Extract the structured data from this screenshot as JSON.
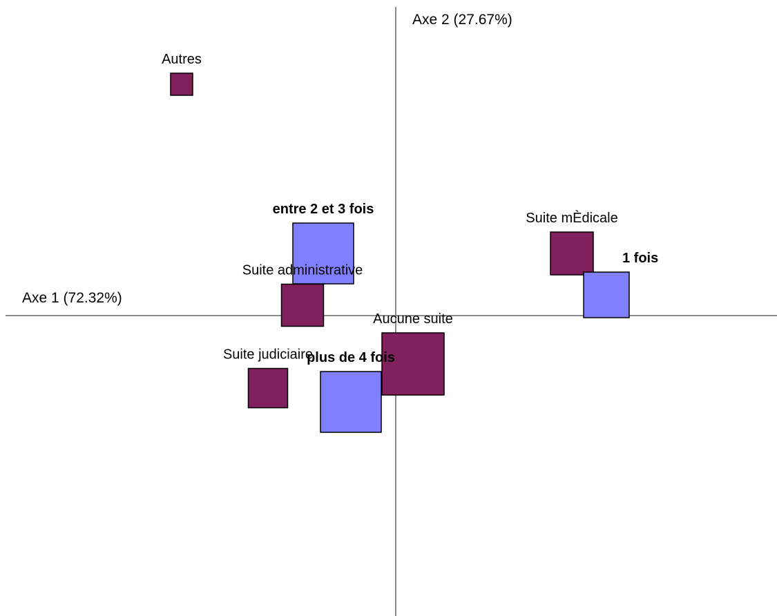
{
  "chart_data": {
    "type": "scatter",
    "title": "",
    "xlabel": "Axe 1 (72.32%)",
    "ylabel": "Axe 2 (27.67%)",
    "xlim": [
      -1.0,
      1.0
    ],
    "ylim": [
      -0.8,
      0.86
    ],
    "grid": false,
    "legend": "none",
    "colors": {
      "modalite": "#80205c",
      "frequence": "#8080ff",
      "axis": "#8c8c8c",
      "outline": "#000000"
    },
    "points": [
      {
        "label": "Autres",
        "x": -0.62,
        "y": 0.67,
        "weight": 0.24,
        "group": "modalite",
        "bold": false,
        "label_pos": "above"
      },
      {
        "label": "entre 2 et 3 fois",
        "x": -0.21,
        "y": 0.18,
        "weight": 0.67,
        "group": "frequence",
        "bold": true,
        "label_pos": "above"
      },
      {
        "label": "Suite mÈdicale",
        "x": 0.51,
        "y": 0.18,
        "weight": 0.47,
        "group": "modalite",
        "bold": false,
        "label_pos": "above"
      },
      {
        "label": "1 fois",
        "x": 0.61,
        "y": 0.06,
        "weight": 0.5,
        "group": "frequence",
        "bold": true,
        "label_pos": "above-right"
      },
      {
        "label": "Suite administrative",
        "x": -0.27,
        "y": 0.03,
        "weight": 0.46,
        "group": "modalite",
        "bold": false,
        "label_pos": "above"
      },
      {
        "label": "Aucune suite",
        "x": 0.05,
        "y": -0.14,
        "weight": 0.68,
        "group": "modalite",
        "bold": false,
        "label_pos": "above"
      },
      {
        "label": "Suite judiciaire",
        "x": -0.37,
        "y": -0.21,
        "weight": 0.43,
        "group": "modalite",
        "bold": false,
        "label_pos": "above"
      },
      {
        "label": "plus de 4 fois",
        "x": -0.13,
        "y": -0.25,
        "weight": 0.67,
        "group": "frequence",
        "bold": true,
        "label_pos": "above"
      }
    ]
  }
}
